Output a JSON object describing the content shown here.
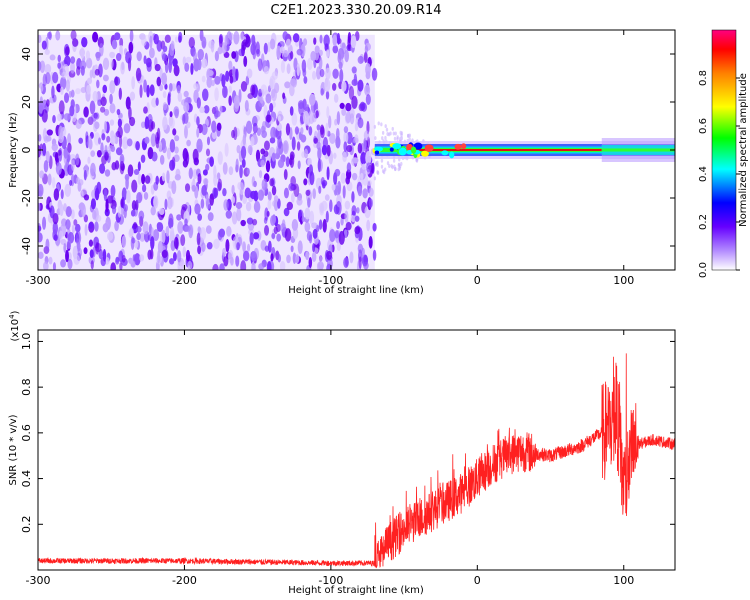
{
  "title": "C2E1.2023.330.20.09.R14",
  "chart_data": [
    {
      "type": "heatmap",
      "panel": "top",
      "xlabel": "Height of straight line (km)",
      "ylabel": "Frequency (Hz)",
      "xlim": [
        -300,
        135
      ],
      "ylim": [
        -50,
        50
      ],
      "xticks": [
        -300,
        -200,
        -100,
        0,
        100
      ],
      "yticks": [
        -40,
        -20,
        0,
        20,
        40
      ],
      "noise_region": {
        "x_from": -300,
        "x_to": -70,
        "freq_from": -50,
        "freq_to": 48
      },
      "signal_band": {
        "x_from": -70,
        "x_to": 135,
        "center_freq": 0,
        "normalized_amplitude_peak": 1.0
      },
      "colorbar": {
        "label": "Normalized spectral amplitude",
        "range": [
          0,
          1
        ],
        "ticks": [
          "0.0",
          "0.2",
          "0.4",
          "0.6",
          "0.8"
        ],
        "colors": [
          "#ffffff",
          "#6600ff",
          "#0000ff",
          "#00ffff",
          "#00ff00",
          "#ffff00",
          "#ff0000",
          "#ff0080"
        ]
      },
      "grid": false
    },
    {
      "type": "line",
      "panel": "bottom",
      "xlabel": "Height of straight line (km)",
      "ylabel": "SNR (10 * v/v)",
      "y_multiplier": "(x10",
      "y_multiplier_exp": "4",
      "xlim": [
        -300,
        135
      ],
      "ylim": [
        0,
        1.05
      ],
      "xticks": [
        -300,
        -200,
        -100,
        0,
        100
      ],
      "yticks": [
        "0.2",
        "0.4",
        "0.6",
        "0.8",
        "1.0"
      ],
      "series_color": "#ff2020",
      "envelope": {
        "x": [
          -300,
          -200,
          -100,
          -70,
          -60,
          -50,
          -40,
          -30,
          -20,
          -10,
          0,
          10,
          20,
          30,
          40,
          50,
          60,
          70,
          80,
          90,
          95,
          100,
          105,
          110,
          120,
          135
        ],
        "y": [
          0.04,
          0.04,
          0.03,
          0.03,
          0.12,
          0.18,
          0.22,
          0.26,
          0.3,
          0.34,
          0.4,
          0.46,
          0.5,
          0.52,
          0.51,
          0.5,
          0.52,
          0.54,
          0.58,
          0.62,
          0.7,
          0.35,
          0.5,
          0.55,
          0.57,
          0.55
        ]
      },
      "grid": false
    }
  ]
}
